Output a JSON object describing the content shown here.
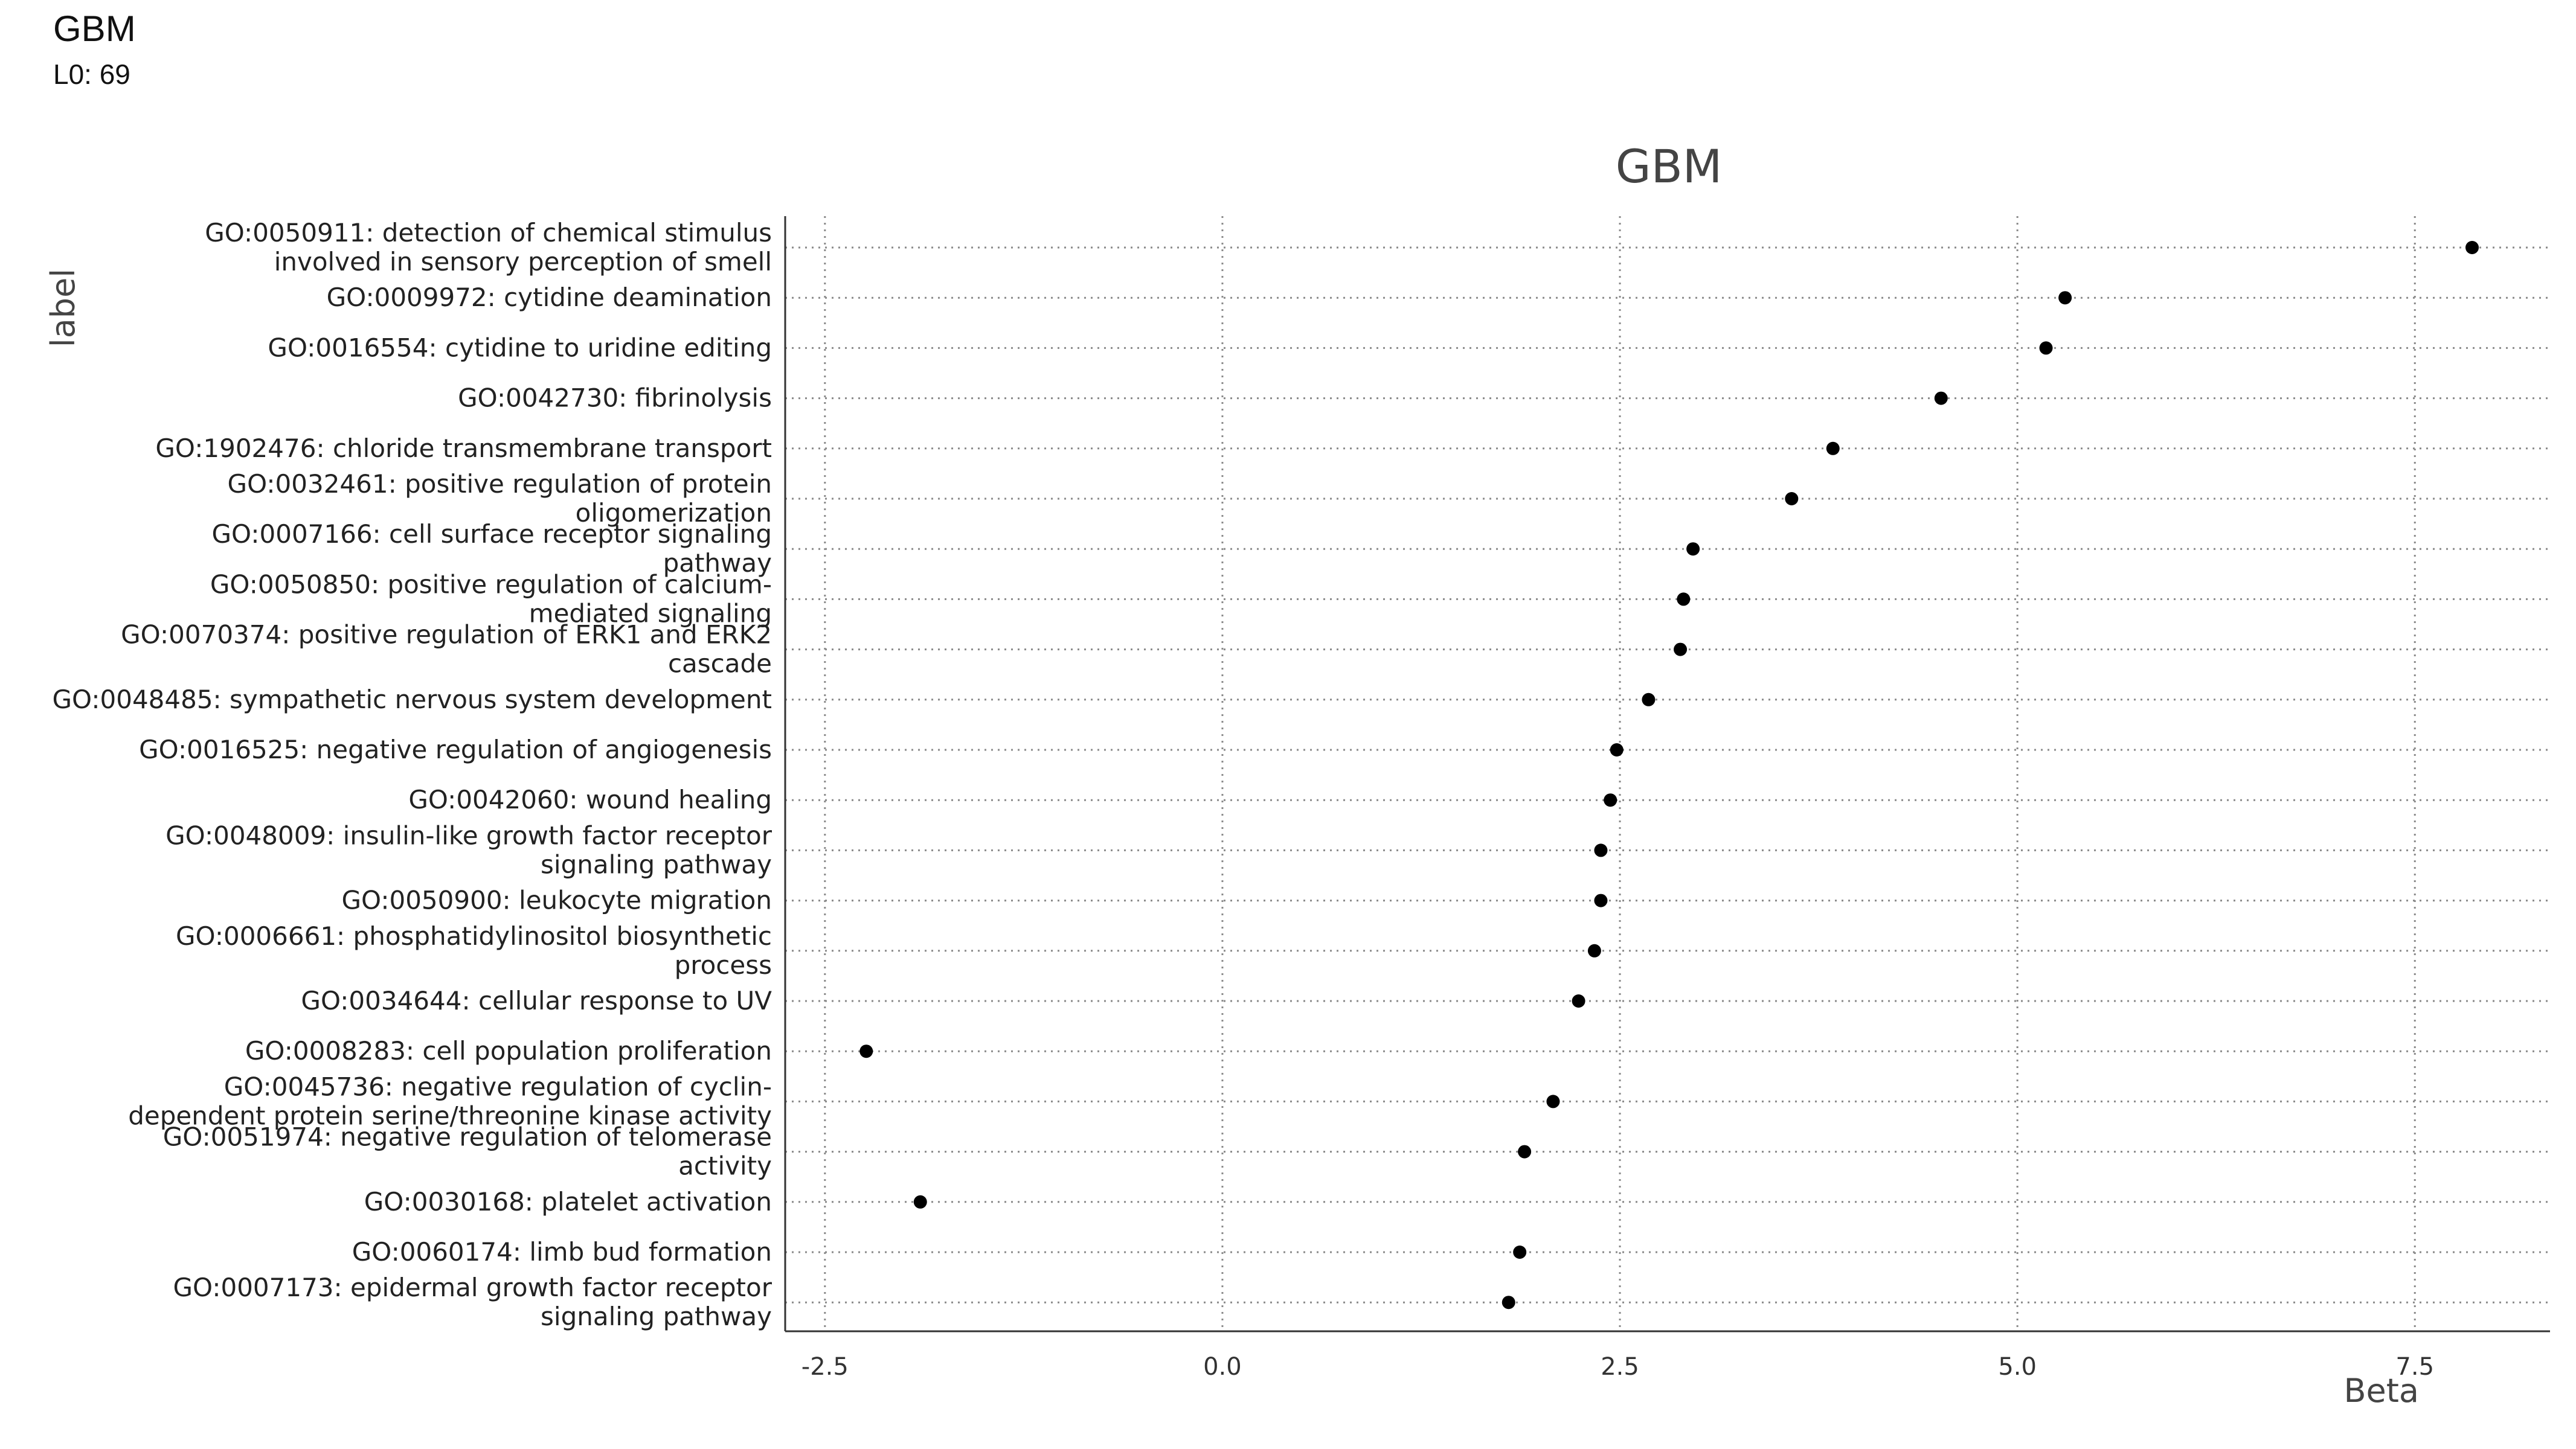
{
  "header": {
    "title": "GBM",
    "subtitle": "L0: 69"
  },
  "chart_data": {
    "type": "scatter",
    "title": "GBM",
    "xlabel": "Beta",
    "ylabel": "label",
    "xlim": [
      -2.75,
      8.35
    ],
    "xticks": [
      -2.5,
      0.0,
      2.5,
      5.0,
      7.5
    ],
    "xtick_labels": [
      "-2.5",
      "0.0",
      "2.5",
      "5.0",
      "7.5"
    ],
    "grid": "dotted",
    "point_color": "#000000",
    "labels": [
      [
        "GO:0050911: detection of chemical stimulus",
        "involved in sensory perception of smell"
      ],
      [
        "GO:0009972: cytidine deamination"
      ],
      [
        "GO:0016554: cytidine to uridine editing"
      ],
      [
        "GO:0042730: fibrinolysis"
      ],
      [
        "GO:1902476: chloride transmembrane transport"
      ],
      [
        "GO:0032461: positive regulation of protein",
        "oligomerization"
      ],
      [
        "GO:0007166: cell surface receptor signaling",
        "pathway"
      ],
      [
        "GO:0050850: positive regulation of calcium-",
        "mediated signaling"
      ],
      [
        "GO:0070374: positive regulation of ERK1 and ERK2",
        "cascade"
      ],
      [
        "GO:0048485: sympathetic nervous system development"
      ],
      [
        "GO:0016525: negative regulation of angiogenesis"
      ],
      [
        "GO:0042060: wound healing"
      ],
      [
        "GO:0048009: insulin-like growth factor receptor",
        "signaling pathway"
      ],
      [
        "GO:0050900: leukocyte migration"
      ],
      [
        "GO:0006661: phosphatidylinositol biosynthetic",
        "process"
      ],
      [
        "GO:0034644: cellular response to UV"
      ],
      [
        "GO:0008283: cell population proliferation"
      ],
      [
        "GO:0045736: negative regulation of cyclin-",
        "dependent protein serine/threonine kinase activity"
      ],
      [
        "GO:0051974: negative regulation of telomerase",
        "activity"
      ],
      [
        "GO:0030168: platelet activation"
      ],
      [
        "GO:0060174: limb bud formation"
      ],
      [
        "GO:0007173: epidermal growth factor receptor",
        "signaling pathway"
      ]
    ],
    "values": [
      7.86,
      5.3,
      5.18,
      4.52,
      3.84,
      3.58,
      2.96,
      2.9,
      2.88,
      2.68,
      2.48,
      2.44,
      2.38,
      2.38,
      2.34,
      2.24,
      -2.24,
      2.08,
      1.9,
      -1.9,
      1.87,
      1.8
    ]
  }
}
